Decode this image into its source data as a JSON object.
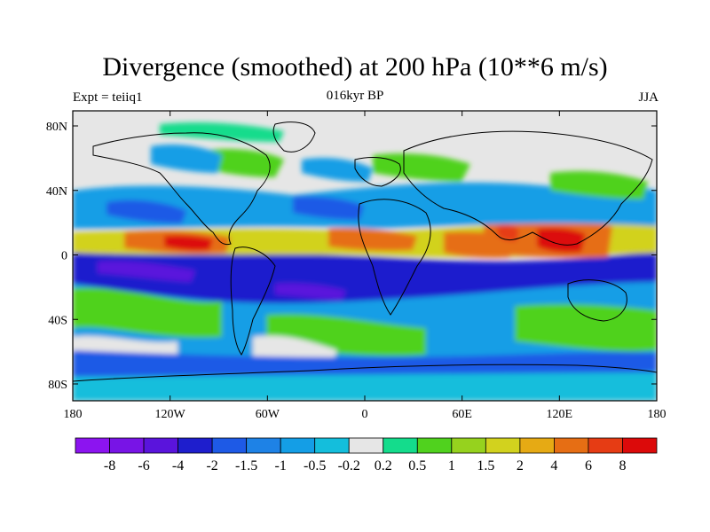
{
  "header": {
    "title": "Divergence (smoothed) at 200 hPa (10**6 m/s)",
    "experiment": "Expt = teiiq1",
    "period": "016kyr BP",
    "season": "JJA"
  },
  "map": {
    "lat_ticks": [
      "80N",
      "40N",
      "0",
      "40S",
      "80S"
    ],
    "lon_ticks": [
      "180",
      "120W",
      "60W",
      "0",
      "60E",
      "120E",
      "180"
    ],
    "background_color": "#e6e6e6"
  },
  "colorbar": {
    "colors": [
      "#8c14f0",
      "#7814e6",
      "#5a14dc",
      "#1e1ecd",
      "#1e5ae6",
      "#1e82e6",
      "#149ee6",
      "#14bedc",
      "#e6e6e6",
      "#14dc8c",
      "#50d21e",
      "#96d21e",
      "#d2d21e",
      "#e6aa14",
      "#e66e14",
      "#e63c14",
      "#dc0a0a"
    ],
    "labels": [
      "-8",
      "-6",
      "-4",
      "-2",
      "-1.5",
      "-1",
      "-0.5",
      "-0.2",
      "0.2",
      "0.5",
      "1",
      "1.5",
      "2",
      "4",
      "6",
      "8"
    ]
  }
}
